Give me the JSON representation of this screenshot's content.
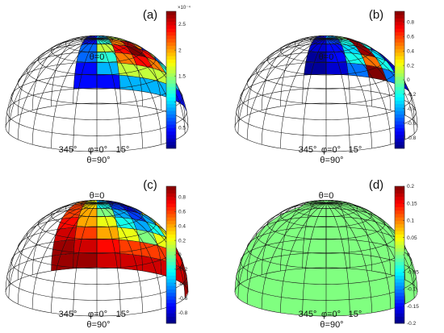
{
  "panels": [
    {
      "label": "(a)",
      "top_annotation": "θ=0",
      "bottom_annotation": {
        "left": "345°",
        "center": "φ=0°",
        "right": "15°",
        "theta": "θ=90°"
      },
      "colorbar": {
        "colormap": "jet",
        "range": [
          0.1,
          2.75
        ],
        "ticks": [
          "0.5",
          "1",
          "1.5",
          "2",
          "2.5"
        ],
        "tick_values": [
          0.5,
          1,
          1.5,
          2,
          2.5
        ],
        "multiplier": "×10⁻⁴"
      }
    },
    {
      "label": "(b)",
      "top_annotation": "θ=0",
      "bottom_annotation": {
        "left": "345°",
        "center": "φ=0°",
        "right": "15°",
        "theta": "θ=90°"
      },
      "colorbar": {
        "colormap": "jet",
        "range": [
          -0.95,
          0.95
        ],
        "ticks": [
          "0.8",
          "0.6",
          "0.4",
          "0.2",
          "0",
          "-0.2",
          "-0.4",
          "-0.6",
          "-0.8"
        ],
        "tick_values": [
          0.8,
          0.6,
          0.4,
          0.2,
          0,
          -0.2,
          -0.4,
          -0.6,
          -0.8
        ],
        "multiplier": ""
      }
    },
    {
      "label": "(c)",
      "top_annotation": "θ=0",
      "bottom_annotation": {
        "left": "345°",
        "center": "φ=0°",
        "right": "15°",
        "theta": "θ=90°"
      },
      "colorbar": {
        "colormap": "jet",
        "range": [
          -0.95,
          0.95
        ],
        "ticks": [
          "0.8",
          "0.6",
          "0.4",
          "0.2",
          "0",
          "-0.2",
          "-0.4",
          "-0.6",
          "-0.8"
        ],
        "tick_values": [
          0.8,
          0.6,
          0.4,
          0.2,
          0,
          -0.2,
          -0.4,
          -0.6,
          -0.8
        ],
        "multiplier": ""
      }
    },
    {
      "label": "(d)",
      "top_annotation": "θ=0",
      "bottom_annotation": {
        "left": "345°",
        "center": "φ=0°",
        "right": "15°",
        "theta": "θ=90°"
      },
      "colorbar": {
        "colormap": "jet",
        "range": [
          -0.2,
          0.2
        ],
        "ticks": [
          "0.2",
          "0.15",
          "0.1",
          "0.05",
          "0",
          "-0.05",
          "-0.1",
          "-0.15",
          "-0.2"
        ],
        "tick_values": [
          0.2,
          0.15,
          0.1,
          0.05,
          0,
          -0.05,
          -0.1,
          -0.15,
          -0.2
        ],
        "multiplier": ""
      }
    }
  ],
  "chart_data": [
    {
      "type": "heatmap",
      "panel": "(a)",
      "description_axes": {
        "theta_rings": 9,
        "phi_columns": 7
      },
      "columns_phi_deg": [
        315,
        330,
        345,
        0,
        15,
        30,
        45
      ],
      "rows_theta_index": [
        2,
        3,
        4,
        5,
        6,
        7,
        8
      ],
      "values": [
        [
          0.45,
          0.45,
          0.9,
          0.9,
          0.9,
          0.45,
          0.45
        ],
        [
          0.45,
          0.9,
          1.6,
          1.6,
          1.6,
          0.9,
          0.45
        ],
        [
          0.45,
          1.2,
          2.1,
          2.6,
          2.1,
          1.2,
          0.45
        ],
        [
          0.7,
          1.6,
          2.4,
          2.75,
          2.4,
          1.6,
          0.7
        ],
        [
          0.7,
          1.2,
          2.1,
          2.4,
          2.1,
          1.2,
          0.7
        ],
        [
          0.45,
          0.9,
          1.6,
          1.6,
          1.6,
          0.9,
          0.45
        ],
        [
          0.45,
          0.45,
          0.9,
          0.9,
          0.9,
          0.45,
          0.45
        ]
      ],
      "unit_multiplier": "1e-4",
      "clim": [
        0.1,
        2.75
      ]
    },
    {
      "type": "heatmap",
      "panel": "(b)",
      "columns_phi_deg": [
        315,
        330,
        345,
        0,
        15,
        30,
        45
      ],
      "rows_theta_index": [
        1,
        2,
        3,
        4,
        5,
        6,
        7
      ],
      "values": [
        [
          -0.3,
          0.1,
          0.6,
          0.9,
          0.6,
          0.1,
          -0.3
        ],
        [
          -0.5,
          -0.2,
          0.3,
          0.9,
          0.3,
          -0.2,
          -0.5
        ],
        [
          -0.7,
          -0.4,
          0.0,
          0.9,
          0.0,
          -0.4,
          -0.7
        ],
        [
          -0.8,
          -0.6,
          -0.2,
          0.9,
          -0.2,
          -0.6,
          -0.8
        ],
        [
          -0.8,
          -0.7,
          -0.3,
          0.9,
          -0.3,
          -0.7,
          -0.8
        ],
        [
          -0.9,
          -0.7,
          -0.2,
          0.5,
          -0.2,
          -0.7,
          -0.9
        ],
        [
          -0.9,
          -0.8,
          -0.5,
          0.95,
          -0.5,
          -0.8,
          -0.9
        ]
      ],
      "clim": [
        -0.95,
        0.95
      ]
    },
    {
      "type": "heatmap",
      "panel": "(c)",
      "columns_phi_deg": [
        300,
        315,
        330,
        345,
        0,
        15,
        30,
        45,
        60
      ],
      "rows_theta_index": [
        3,
        4,
        5,
        6,
        7,
        8,
        9
      ],
      "values": [
        [
          0.5,
          0.2,
          -0.4,
          -0.8,
          -0.9,
          -0.8,
          -0.4,
          0.2,
          0.5
        ],
        [
          0.6,
          0.3,
          -0.2,
          -0.6,
          -0.8,
          -0.6,
          -0.2,
          0.3,
          0.6
        ],
        [
          0.6,
          0.4,
          0.0,
          -0.4,
          -0.6,
          -0.4,
          0.0,
          0.4,
          0.6
        ],
        [
          0.7,
          0.4,
          0.2,
          -0.2,
          -0.4,
          -0.2,
          0.2,
          0.4,
          0.7
        ],
        [
          0.8,
          0.6,
          0.4,
          0.2,
          0.0,
          0.2,
          0.4,
          0.6,
          0.8
        ],
        [
          0.9,
          0.8,
          0.7,
          0.6,
          0.6,
          0.6,
          0.7,
          0.8,
          0.9
        ],
        [
          0.9,
          0.9,
          0.8,
          0.8,
          0.8,
          0.8,
          0.8,
          0.9,
          0.9
        ]
      ],
      "clim": [
        -0.95,
        0.95
      ]
    },
    {
      "type": "heatmap",
      "panel": "(d)",
      "columns_phi_deg": [
        300,
        315,
        330,
        345,
        0,
        15,
        30,
        45,
        60
      ],
      "rows_theta_index": [
        1,
        2,
        3,
        4,
        5,
        6,
        7,
        8,
        9
      ],
      "uniform_value": 0.0,
      "clim": [
        -0.2,
        0.2
      ]
    }
  ]
}
